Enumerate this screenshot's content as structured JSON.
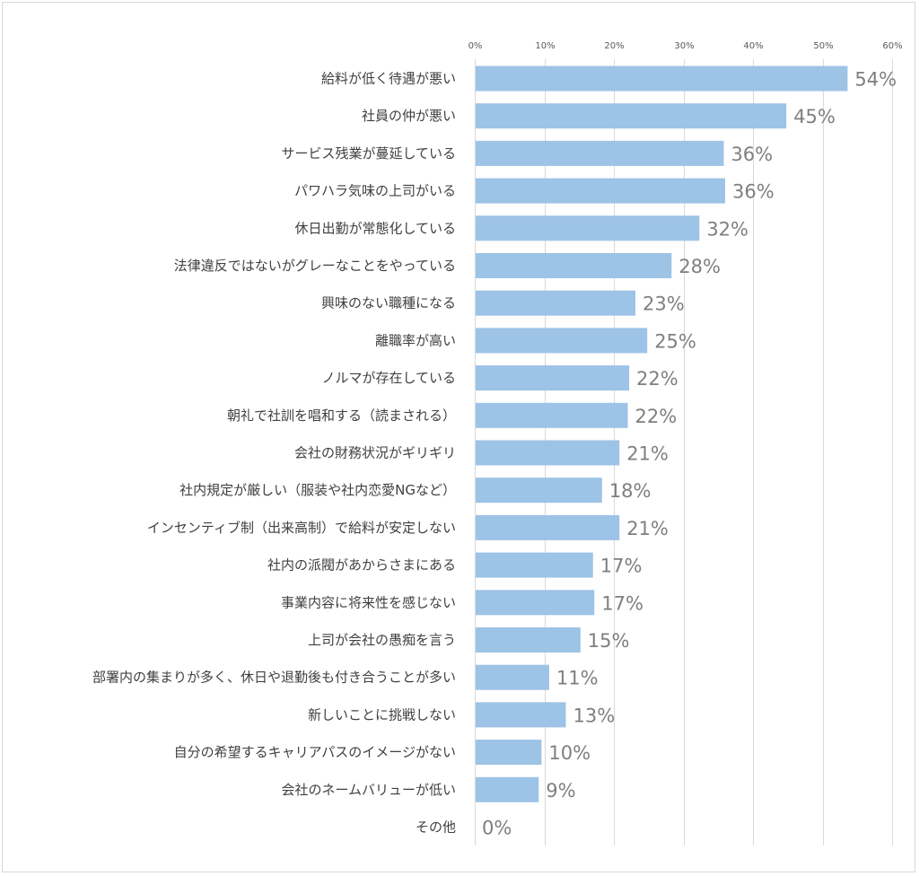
{
  "chart_data": {
    "type": "bar",
    "orientation": "horizontal",
    "title": "",
    "xlabel": "",
    "ylabel": "",
    "xlim": [
      0,
      60
    ],
    "x_ticks": [
      "0%",
      "10%",
      "20%",
      "30%",
      "40%",
      "50%",
      "60%"
    ],
    "x_axis_position": "top",
    "grid": true,
    "legend": "none",
    "bar_color": "#9dc3e6",
    "categories": [
      "給料が低く待遇が悪い",
      "社員の仲が悪い",
      "サービス残業が蔓延している",
      "パワハラ気味の上司がいる",
      "休日出勤が常態化している",
      "法律違反ではないがグレーなことをやっている",
      "興味のない職種になる",
      "離職率が高い",
      "ノルマが存在している",
      "朝礼で社訓を唱和する（読まされる）",
      "会社の財務状況がギリギリ",
      "社内規定が厳しい（服装や社内恋愛NGなど）",
      "インセンティブ制（出来高制）で給料が安定しない",
      "社内の派閥があからさまにある",
      "事業内容に将来性を感じない",
      "上司が会社の愚痴を言う",
      "部署内の集まりが多く、休日や退勤後も付き合うことが多い",
      "新しいことに挑戦しない",
      "自分の希望するキャリアパスのイメージがない",
      "会社のネームバリューが低い",
      "その他"
    ],
    "values": [
      53.6,
      44.8,
      35.8,
      36.0,
      32.3,
      28.3,
      23.1,
      24.8,
      22.2,
      22.0,
      20.8,
      18.3,
      20.8,
      17.0,
      17.2,
      15.2,
      10.7,
      13.1,
      9.6,
      9.2,
      0
    ],
    "data_labels": [
      "54%",
      "45%",
      "36%",
      "36%",
      "32%",
      "28%",
      "23%",
      "25%",
      "22%",
      "22%",
      "21%",
      "18%",
      "21%",
      "17%",
      "17%",
      "15%",
      "11%",
      "13%",
      "10%",
      "9%",
      "0%"
    ]
  }
}
